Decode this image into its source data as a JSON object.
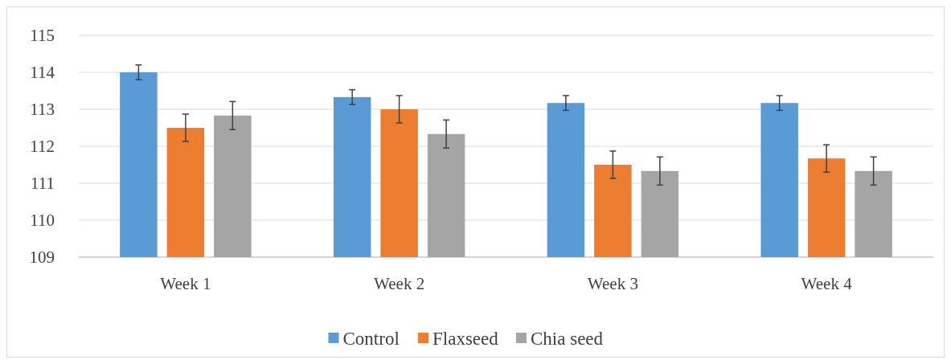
{
  "chart_data": {
    "type": "bar",
    "categories": [
      "Week 1",
      "Week 2",
      "Week 3",
      "Week 4"
    ],
    "series": [
      {
        "name": "Control",
        "color": "#5b9bd5",
        "values": [
          114.0,
          113.33,
          113.17,
          113.17
        ],
        "errors": [
          0.2,
          0.2,
          0.2,
          0.2
        ]
      },
      {
        "name": "Flaxseed",
        "color": "#ed7d31",
        "values": [
          112.5,
          113.0,
          111.5,
          111.67
        ],
        "errors": [
          0.37,
          0.37,
          0.37,
          0.37
        ]
      },
      {
        "name": "Chia seed",
        "color": "#a5a5a5",
        "values": [
          112.83,
          112.33,
          111.33,
          111.33
        ],
        "errors": [
          0.38,
          0.38,
          0.38,
          0.38
        ]
      }
    ],
    "ylim": [
      109,
      115
    ],
    "yticks": [
      109,
      110,
      111,
      112,
      113,
      114,
      115
    ],
    "grid": "y",
    "legend": "bottom"
  }
}
